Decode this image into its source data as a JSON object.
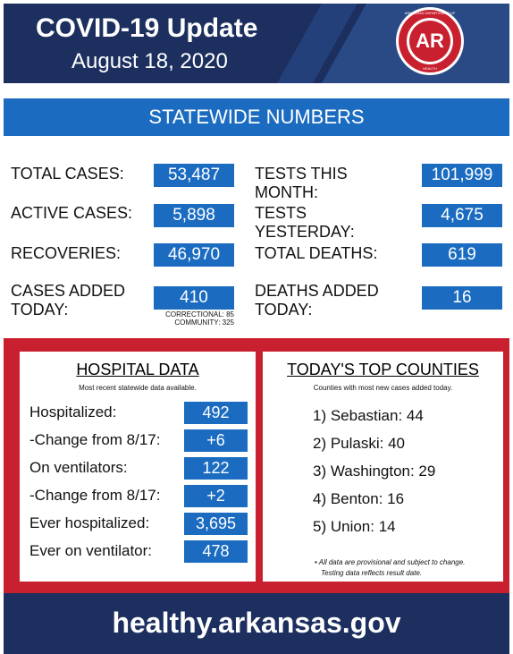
{
  "header": {
    "title": "COVID-19 Update",
    "date": "August 18, 2020",
    "logo": {
      "top": "ARKANSAS DEPARTMENT OF",
      "initials": "AR",
      "bottom": "HEALTH"
    }
  },
  "statewide": {
    "title": "STATEWIDE NUMBERS",
    "left": [
      {
        "label": "TOTAL CASES:",
        "value": "53,487"
      },
      {
        "label": "ACTIVE CASES:",
        "value": "5,898"
      },
      {
        "label": "RECOVERIES:",
        "value": "46,970"
      },
      {
        "label": "CASES ADDED TODAY:",
        "value": "410"
      }
    ],
    "right": [
      {
        "label": "TESTS THIS MONTH:",
        "value": "101,999"
      },
      {
        "label": "TESTS YESTERDAY:",
        "value": "4,675"
      },
      {
        "label": "TOTAL DEATHS:",
        "value": "619"
      },
      {
        "label": "DEATHS ADDED TODAY:",
        "value": "16"
      }
    ],
    "cases_note": [
      "CORRECTIONAL: 85",
      "COMMUNITY: 325"
    ]
  },
  "hospital": {
    "title": "HOSPITAL DATA",
    "subtitle": "Most recent statewide data available.",
    "rows": [
      {
        "label": "Hospitalized:",
        "value": "492"
      },
      {
        "label": "-Change from 8/17:",
        "value": "+6"
      },
      {
        "label": "On ventilators:",
        "value": "122"
      },
      {
        "label": "-Change from 8/17:",
        "value": "+2"
      },
      {
        "label": "Ever hospitalized:",
        "value": "3,695"
      },
      {
        "label": "Ever on ventilator:",
        "value": "478"
      }
    ]
  },
  "counties": {
    "title": "TODAY'S TOP COUNTIES",
    "subtitle": "Counties with most new cases added today.",
    "items": [
      "1) Sebastian: 44",
      "2) Pulaski: 40",
      "3) Washington: 29",
      "4) Benton: 16",
      "5) Union: 14"
    ],
    "notes": [
      "• All data are provisional and subject to change.",
      "Testing data reflects result date."
    ]
  },
  "footer": {
    "url": "healthy.arkansas.gov"
  }
}
